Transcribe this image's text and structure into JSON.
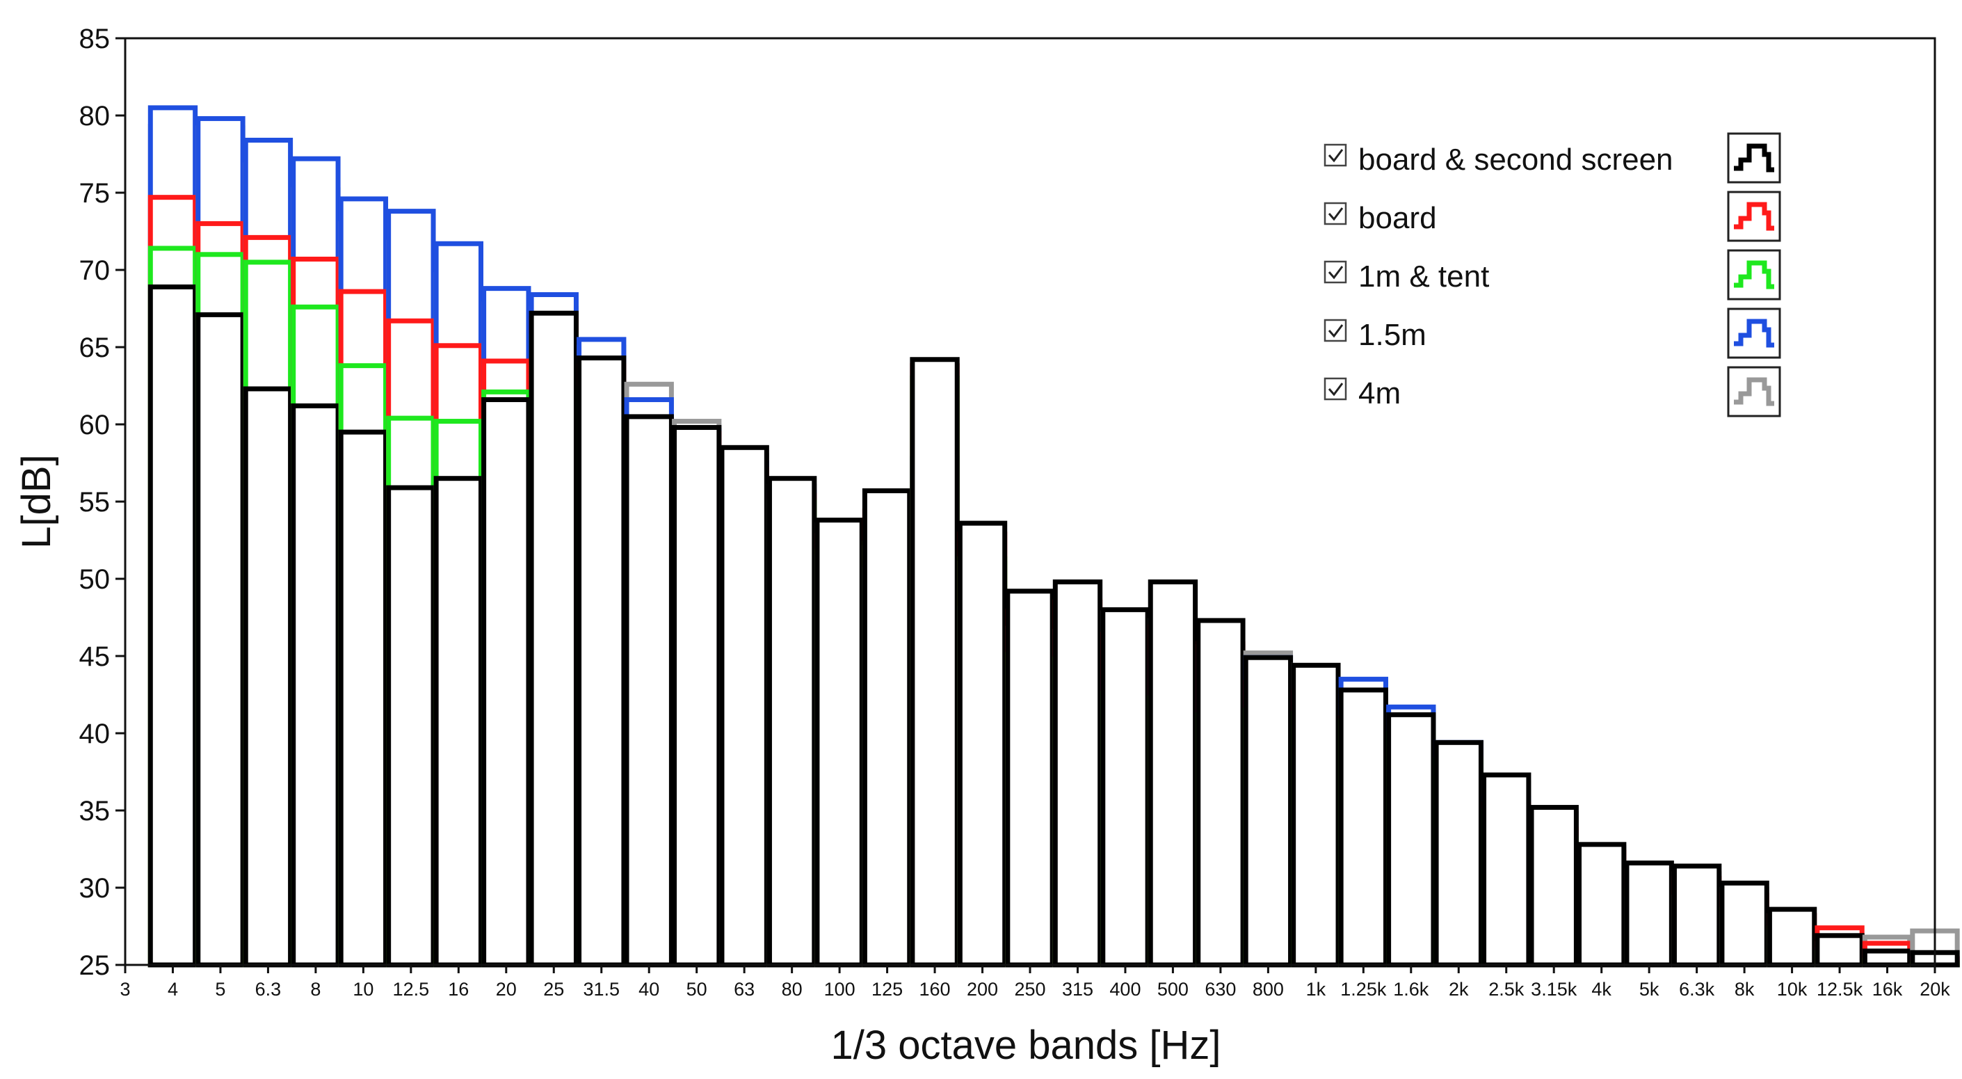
{
  "chart_data": {
    "type": "bar",
    "title": "",
    "xlabel": "1/3 octave bands [Hz]",
    "ylabel": "L[dB]",
    "ylim": [
      25,
      85
    ],
    "yticks": [
      25,
      30,
      35,
      40,
      45,
      50,
      55,
      60,
      65,
      70,
      75,
      80,
      85
    ],
    "grid": false,
    "legend_position": "top-right",
    "xtick_labels": [
      "3",
      "4",
      "5",
      "6.3",
      "8",
      "10",
      "12.5",
      "16",
      "20",
      "25",
      "31.5",
      "40",
      "50",
      "63",
      "80",
      "100",
      "125",
      "160",
      "200",
      "250",
      "315",
      "400",
      "500",
      "630",
      "800",
      "1k",
      "1.25k",
      "1.6k",
      "2k",
      "2.5k",
      "3.15k",
      "4k",
      "5k",
      "6.3k",
      "8k",
      "10k",
      "12.5k",
      "16k",
      "20k"
    ],
    "categories": [
      "4",
      "5",
      "6.3",
      "8",
      "10",
      "12.5",
      "16",
      "20",
      "25",
      "31.5",
      "40",
      "50",
      "63",
      "80",
      "100",
      "125",
      "160",
      "200",
      "250",
      "315",
      "400",
      "500",
      "630",
      "800",
      "1k",
      "1.25k",
      "1.6k",
      "2k",
      "2.5k",
      "3.15k",
      "4k",
      "5k",
      "6.3k",
      "8k",
      "10k",
      "12.5k",
      "16k",
      "20k"
    ],
    "series": [
      {
        "name": "4m",
        "color": "#999999",
        "checked": true,
        "values": [
          79.3,
          79.2,
          76.8,
          75.2,
          73.0,
          71.8,
          69.7,
          67.8,
          67.5,
          65.0,
          62.6,
          60.2,
          58.0,
          56.0,
          53.5,
          52.0,
          61.4,
          51.0,
          46.8,
          46.6,
          47.8,
          47.3,
          45.6,
          45.2,
          44.4,
          42.8,
          41.4,
          39.2,
          36.8,
          34.8,
          32.6,
          31.1,
          30.9,
          29.9,
          28.2,
          26.4,
          26.8,
          27.2
        ]
      },
      {
        "name": "1.5m",
        "color": "#1f4fe0",
        "checked": true,
        "values": [
          80.5,
          79.8,
          78.4,
          77.2,
          74.6,
          73.8,
          71.7,
          68.8,
          68.4,
          65.5,
          61.6,
          59.6,
          57.5,
          55.6,
          51.4,
          50.6,
          57.8,
          48.1,
          44.2,
          44.6,
          43.4,
          45.1,
          45.1,
          44.9,
          42.7,
          43.5,
          41.7,
          39.4,
          35.8,
          33.6,
          30.7,
          29.3,
          29.4,
          28.3,
          27.2,
          26.0,
          25.0,
          25.4
        ]
      },
      {
        "name": "board",
        "color": "#ff1a1a",
        "checked": true,
        "values": [
          74.7,
          73.0,
          72.1,
          70.7,
          68.6,
          66.7,
          65.1,
          64.1,
          66.8,
          63.8,
          60.0,
          59.4,
          57.1,
          55.4,
          52.8,
          54.4,
          63.8,
          52.9,
          47.9,
          48.5,
          46.4,
          46.9,
          45.8,
          43.3,
          42.7,
          41.0,
          39.2,
          37.8,
          35.4,
          33.8,
          32.3,
          31.1,
          30.6,
          29.5,
          28.2,
          27.4,
          26.4,
          25.4
        ]
      },
      {
        "name": "1m & tent",
        "color": "#1ee81e",
        "checked": true,
        "values": [
          71.4,
          71.0,
          70.5,
          67.6,
          63.8,
          60.4,
          60.2,
          62.1,
          65.7,
          62.3,
          58.5,
          58.3,
          56.2,
          55.0,
          51.8,
          52.3,
          63.0,
          51.3,
          45.1,
          44.8,
          42.6,
          42.3,
          41.2,
          41.5,
          41.3,
          40.8,
          40.0,
          38.3,
          35.0,
          33.2,
          31.5,
          29.8,
          29.4,
          28.6,
          27.4,
          25.8,
          25.3,
          25.1
        ]
      },
      {
        "name": "board & second screen",
        "color": "#000000",
        "checked": true,
        "values": [
          68.9,
          67.1,
          62.3,
          61.2,
          59.5,
          55.9,
          56.5,
          61.6,
          67.2,
          64.3,
          60.5,
          59.8,
          58.5,
          56.5,
          53.8,
          55.7,
          64.2,
          53.6,
          49.2,
          49.8,
          48.0,
          49.8,
          47.3,
          44.9,
          44.4,
          42.8,
          41.2,
          39.4,
          37.3,
          35.2,
          32.8,
          31.6,
          31.4,
          30.3,
          28.6,
          26.9,
          25.9,
          25.8
        ]
      }
    ],
    "legend": [
      {
        "label": "board & second screen",
        "color": "#000000"
      },
      {
        "label": "board",
        "color": "#ff1a1a"
      },
      {
        "label": "1m & tent",
        "color": "#1ee81e"
      },
      {
        "label": "1.5m",
        "color": "#1f4fe0"
      },
      {
        "label": "4m",
        "color": "#999999"
      }
    ]
  }
}
